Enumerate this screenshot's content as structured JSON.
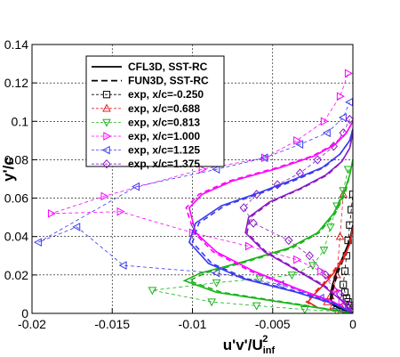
{
  "chart_data": {
    "type": "line",
    "title": "",
    "xlabel": {
      "main": "u'v'/U",
      "sub": "inf",
      "sup": "2"
    },
    "ylabel": "y'/c",
    "xlim": [
      -0.02,
      0
    ],
    "ylim": [
      0,
      0.14
    ],
    "xticks": [
      -0.02,
      -0.015,
      -0.01,
      -0.005,
      0
    ],
    "xtick_labels": [
      "-0.02",
      "-0.015",
      "-0.01",
      "-0.005",
      "0"
    ],
    "yticks": [
      0,
      0.02,
      0.04,
      0.06,
      0.08,
      0.1,
      0.12,
      0.14
    ],
    "ytick_labels": [
      "0",
      "0.02",
      "0.04",
      "0.06",
      "0.08",
      "0.1",
      "0.12",
      "0.14"
    ],
    "grid": true,
    "legend_position": "top-right",
    "legend": [
      {
        "label": "CFL3D, SST-RC",
        "style": "solid",
        "color": "#000000"
      },
      {
        "label": "FUN3D, SST-RC",
        "style": "dashed",
        "color": "#000000"
      },
      {
        "label": "exp, x/c=-0.250",
        "style": "marker",
        "marker": "square",
        "color": "#000000"
      },
      {
        "label": "exp, x/c=0.688",
        "style": "marker",
        "marker": "triangle-up",
        "color": "#e8201e"
      },
      {
        "label": "exp, x/c=0.813",
        "style": "marker",
        "marker": "triangle-down",
        "color": "#18b418"
      },
      {
        "label": "exp, x/c=1.000",
        "style": "marker",
        "marker": "triangle-right",
        "color": "#ff00ff"
      },
      {
        "label": "exp, x/c=1.125",
        "style": "marker",
        "marker": "triangle-left",
        "color": "#3a3aef"
      },
      {
        "label": "exp, x/c=1.375",
        "style": "marker",
        "marker": "diamond",
        "color": "#8a18c8"
      }
    ],
    "series": [
      {
        "legend_index": 2,
        "kind": "exp",
        "station": "-0.250",
        "color": "#000000",
        "marker": "square",
        "x": [
          0,
          -0.0002,
          -0.0003,
          -0.0004,
          -0.0005,
          -0.0006,
          -0.0005,
          -0.0004,
          -0.0003,
          -0.0002,
          -0.0001,
          0
        ],
        "y": [
          0.002,
          0.004,
          0.006,
          0.008,
          0.011,
          0.015,
          0.022,
          0.03,
          0.038,
          0.046,
          0.054,
          0.062
        ]
      },
      {
        "legend_index": 3,
        "kind": "exp",
        "station": "0.688",
        "color": "#e8201e",
        "marker": "triangle-up",
        "x": [
          -0.0002,
          -0.0004,
          -0.0007,
          -0.0012,
          -0.0016,
          -0.0014,
          -0.0012,
          -0.001,
          -0.0008,
          -0.0006
        ],
        "y": [
          0.001,
          0.002,
          0.003,
          0.004,
          0.006,
          0.009,
          0.013,
          0.02,
          0.04,
          0.062
        ]
      },
      {
        "legend_index": 4,
        "kind": "exp",
        "station": "0.813",
        "color": "#18b418",
        "marker": "triangle-down",
        "x": [
          -0.0003,
          -0.001,
          -0.003,
          -0.006,
          -0.0088,
          -0.0125,
          -0.0085,
          -0.0058,
          -0.0038,
          -0.0025,
          -0.0018,
          -0.0014,
          -0.001,
          -0.0006,
          -0.0003
        ],
        "y": [
          0.0005,
          0.001,
          0.002,
          0.004,
          0.006,
          0.012,
          0.016,
          0.018,
          0.02,
          0.025,
          0.033,
          0.045,
          0.056,
          0.064,
          0.075
        ]
      },
      {
        "legend_index": 5,
        "kind": "exp",
        "station": "1.000",
        "color": "#ff00ff",
        "marker": "triangle-right",
        "x": [
          -0.0003,
          -0.0007,
          -0.0011,
          -0.002,
          -0.0035,
          -0.0065,
          -0.01,
          -0.0145,
          -0.0188,
          -0.0155,
          -0.0094,
          -0.0055,
          -0.0035,
          -0.0018,
          -0.0008,
          -0.0003
        ],
        "y": [
          0.002,
          0.006,
          0.012,
          0.022,
          0.028,
          0.035,
          0.042,
          0.053,
          0.052,
          0.061,
          0.075,
          0.081,
          0.09,
          0.1,
          0.113,
          0.125
        ]
      },
      {
        "legend_index": 6,
        "kind": "exp",
        "station": "1.125",
        "color": "#3a3aef",
        "marker": "triangle-left",
        "x": [
          -0.0005,
          -0.001,
          -0.002,
          -0.0045,
          -0.0085,
          -0.0143,
          -0.0172,
          -0.0196,
          -0.0135,
          -0.0085,
          -0.0055,
          -0.0033,
          -0.0016,
          -0.0006,
          -0.0002
        ],
        "y": [
          0.001,
          0.003,
          0.008,
          0.015,
          0.021,
          0.025,
          0.045,
          0.037,
          0.066,
          0.075,
          0.081,
          0.088,
          0.094,
          0.102,
          0.11
        ]
      },
      {
        "legend_index": 7,
        "kind": "exp",
        "station": "1.375",
        "color": "#8a18c8",
        "marker": "diamond",
        "x": [
          -0.0002,
          -0.0008,
          -0.0017,
          -0.0027,
          -0.004,
          -0.0062,
          -0.0068,
          -0.006,
          -0.0047,
          -0.0033,
          -0.0022,
          -0.0012,
          -0.0006,
          -0.0002
        ],
        "y": [
          0.004,
          0.01,
          0.02,
          0.03,
          0.038,
          0.047,
          0.055,
          0.062,
          0.067,
          0.073,
          0.08,
          0.087,
          0.094,
          0.101
        ]
      },
      {
        "kind": "cfd",
        "code": "CFL3D",
        "station": "-0.250",
        "color": "#000000",
        "dash": false,
        "x": [
          0,
          -0.0012,
          -0.0014,
          -0.0013,
          -0.001,
          -0.0006,
          -0.0002,
          0
        ],
        "y": [
          0,
          0.004,
          0.008,
          0.014,
          0.022,
          0.03,
          0.038,
          0.046
        ]
      },
      {
        "kind": "cfd",
        "code": "FUN3D",
        "station": "-0.250",
        "color": "#000000",
        "dash": true,
        "x": [
          0,
          -0.0011,
          -0.0013,
          -0.0012,
          -0.0009,
          -0.0005,
          -0.0002,
          0
        ],
        "y": [
          0,
          0.004,
          0.008,
          0.014,
          0.022,
          0.03,
          0.038,
          0.046
        ]
      },
      {
        "kind": "cfd",
        "code": "CFL3D",
        "station": "0.688",
        "color": "#e8201e",
        "dash": false,
        "x": [
          0,
          -0.0008,
          -0.0022,
          -0.0028,
          -0.0024,
          -0.0018,
          -0.0012,
          -0.0006,
          -0.0002,
          0
        ],
        "y": [
          0,
          0.001,
          0.003,
          0.006,
          0.01,
          0.015,
          0.021,
          0.028,
          0.036,
          0.045
        ]
      },
      {
        "kind": "cfd",
        "code": "FUN3D",
        "station": "0.688",
        "color": "#e8201e",
        "dash": true,
        "x": [
          0,
          -0.0009,
          -0.0023,
          -0.0029,
          -0.0025,
          -0.0019,
          -0.0013,
          -0.0007,
          -0.0002,
          0
        ],
        "y": [
          0,
          0.001,
          0.003,
          0.006,
          0.01,
          0.015,
          0.021,
          0.028,
          0.036,
          0.045
        ]
      },
      {
        "kind": "cfd",
        "code": "CFL3D",
        "station": "0.813",
        "color": "#18b418",
        "dash": false,
        "x": [
          0,
          -0.003,
          -0.0085,
          -0.0105,
          -0.0095,
          -0.0068,
          -0.004,
          -0.0022,
          -0.0012,
          -0.0006,
          -0.0002,
          0
        ],
        "y": [
          0,
          0.004,
          0.011,
          0.017,
          0.021,
          0.027,
          0.034,
          0.042,
          0.052,
          0.062,
          0.072,
          0.08
        ]
      },
      {
        "kind": "cfd",
        "code": "FUN3D",
        "station": "0.813",
        "color": "#18b418",
        "dash": true,
        "x": [
          0,
          -0.0028,
          -0.0082,
          -0.0102,
          -0.0092,
          -0.0066,
          -0.0038,
          -0.0021,
          -0.0011,
          -0.0005,
          -0.0002,
          0
        ],
        "y": [
          0,
          0.004,
          0.011,
          0.017,
          0.021,
          0.027,
          0.034,
          0.042,
          0.052,
          0.062,
          0.072,
          0.08
        ]
      },
      {
        "kind": "cfd",
        "code": "CFL3D",
        "station": "1.000",
        "color": "#ff00ff",
        "dash": false,
        "x": [
          0,
          -0.0012,
          -0.0035,
          -0.0062,
          -0.0085,
          -0.0098,
          -0.0102,
          -0.0094,
          -0.0075,
          -0.0045,
          -0.0024,
          -0.0011,
          -0.0004,
          0
        ],
        "y": [
          0,
          0.006,
          0.013,
          0.022,
          0.032,
          0.042,
          0.055,
          0.062,
          0.069,
          0.076,
          0.082,
          0.088,
          0.094,
          0.1
        ]
      },
      {
        "kind": "cfd",
        "code": "FUN3D",
        "station": "1.000",
        "color": "#ff00ff",
        "dash": true,
        "x": [
          0,
          -0.0013,
          -0.0036,
          -0.0064,
          -0.0087,
          -0.0099,
          -0.0104,
          -0.0096,
          -0.0077,
          -0.0047,
          -0.0025,
          -0.0012,
          -0.0004,
          0
        ],
        "y": [
          0,
          0.006,
          0.013,
          0.022,
          0.032,
          0.042,
          0.055,
          0.062,
          0.069,
          0.076,
          0.082,
          0.088,
          0.094,
          0.1
        ]
      },
      {
        "kind": "cfd",
        "code": "CFL3D",
        "station": "1.125",
        "color": "#3a3aef",
        "dash": false,
        "x": [
          0,
          -0.0012,
          -0.0035,
          -0.0068,
          -0.009,
          -0.0102,
          -0.0098,
          -0.0082,
          -0.0058,
          -0.0036,
          -0.0019,
          -0.0008,
          -0.0002,
          0
        ],
        "y": [
          0,
          0.005,
          0.011,
          0.018,
          0.026,
          0.037,
          0.047,
          0.056,
          0.063,
          0.07,
          0.076,
          0.083,
          0.09,
          0.096
        ]
      },
      {
        "kind": "cfd",
        "code": "FUN3D",
        "station": "1.125",
        "color": "#3a3aef",
        "dash": true,
        "x": [
          0,
          -0.0011,
          -0.0033,
          -0.0066,
          -0.0088,
          -0.01,
          -0.0096,
          -0.008,
          -0.0056,
          -0.0034,
          -0.0018,
          -0.0008,
          -0.0002,
          0
        ],
        "y": [
          0,
          0.005,
          0.011,
          0.018,
          0.026,
          0.037,
          0.047,
          0.056,
          0.063,
          0.07,
          0.076,
          0.083,
          0.09,
          0.096
        ]
      },
      {
        "kind": "cfd",
        "code": "CFL3D",
        "station": "1.375",
        "color": "#8a18c8",
        "dash": false,
        "x": [
          0,
          -0.0006,
          -0.0018,
          -0.0036,
          -0.0055,
          -0.0067,
          -0.0065,
          -0.0052,
          -0.0033,
          -0.0017,
          -0.0007,
          -0.0002,
          0
        ],
        "y": [
          0,
          0.006,
          0.014,
          0.023,
          0.032,
          0.042,
          0.05,
          0.058,
          0.065,
          0.072,
          0.079,
          0.086,
          0.094
        ]
      },
      {
        "kind": "cfd",
        "code": "FUN3D",
        "station": "1.375",
        "color": "#8a18c8",
        "dash": true,
        "x": [
          0,
          -0.0006,
          -0.0017,
          -0.0035,
          -0.0054,
          -0.0066,
          -0.0064,
          -0.0051,
          -0.0032,
          -0.0016,
          -0.0007,
          -0.0002,
          0
        ],
        "y": [
          0,
          0.006,
          0.014,
          0.023,
          0.032,
          0.042,
          0.05,
          0.058,
          0.065,
          0.072,
          0.079,
          0.086,
          0.094
        ]
      }
    ]
  }
}
